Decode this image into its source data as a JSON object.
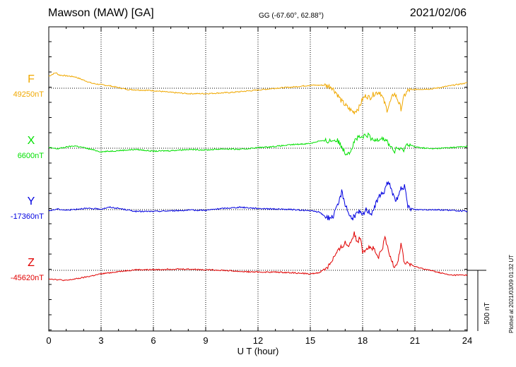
{
  "header": {
    "title": "Mawson (MAW)  [GA]",
    "coords": "GG (-67.60°,  62.88°)",
    "date": "2021/02/06"
  },
  "footer": {
    "plotted": "Plotted at 2021/03/09 01:32 UT"
  },
  "chart_data": {
    "type": "line",
    "xlabel": "U T (hour)",
    "xlim": [
      0,
      24
    ],
    "xticks": [
      0,
      3,
      6,
      9,
      12,
      15,
      18,
      21,
      24
    ],
    "grid": true,
    "scale_bar": {
      "label": "500 nT",
      "value_nT": 500
    },
    "series": [
      {
        "name": "F",
        "baseline_label": "49250nT",
        "baseline_nT": 49250,
        "color": "#f0a800",
        "points": [
          [
            0,
            100
          ],
          [
            0.4,
            130
          ],
          [
            0.6,
            110
          ],
          [
            1.5,
            95
          ],
          [
            2.5,
            40
          ],
          [
            3.5,
            20
          ],
          [
            4.5,
            -10
          ],
          [
            6,
            -20
          ],
          [
            7,
            -35
          ],
          [
            8,
            -45
          ],
          [
            9,
            -45
          ],
          [
            10.5,
            -35
          ],
          [
            12,
            -15
          ],
          [
            13,
            0
          ],
          [
            14,
            10
          ],
          [
            15,
            25
          ],
          [
            15.8,
            25
          ],
          [
            16.2,
            15
          ],
          [
            16.5,
            -40
          ],
          [
            16.8,
            -110
          ],
          [
            17.2,
            -170
          ],
          [
            17.5,
            -200
          ],
          [
            17.8,
            -160
          ],
          [
            18,
            -90
          ],
          [
            18.2,
            -60
          ],
          [
            18.4,
            -80
          ],
          [
            18.7,
            -40
          ],
          [
            19,
            -30
          ],
          [
            19.2,
            -100
          ],
          [
            19.4,
            -180
          ],
          [
            19.6,
            -110
          ],
          [
            19.8,
            -40
          ],
          [
            20,
            -90
          ],
          [
            20.2,
            -170
          ],
          [
            20.4,
            -60
          ],
          [
            20.6,
            -20
          ],
          [
            21,
            -10
          ],
          [
            22,
            -5
          ],
          [
            23,
            20
          ],
          [
            24,
            45
          ]
        ]
      },
      {
        "name": "X",
        "baseline_label": "6600nT",
        "baseline_nT": 6600,
        "color": "#00e000",
        "points": [
          [
            0,
            5
          ],
          [
            0.5,
            -5
          ],
          [
            1,
            10
          ],
          [
            1.5,
            20
          ],
          [
            2,
            5
          ],
          [
            3,
            -30
          ],
          [
            4,
            -20
          ],
          [
            5,
            -10
          ],
          [
            6,
            -25
          ],
          [
            7,
            -20
          ],
          [
            8,
            -10
          ],
          [
            9,
            -15
          ],
          [
            10,
            -5
          ],
          [
            11,
            -10
          ],
          [
            12,
            5
          ],
          [
            13,
            15
          ],
          [
            14,
            30
          ],
          [
            15,
            40
          ],
          [
            15.5,
            60
          ],
          [
            16,
            60
          ],
          [
            16.5,
            70
          ],
          [
            16.8,
            20
          ],
          [
            17,
            -40
          ],
          [
            17.3,
            -25
          ],
          [
            17.6,
            80
          ],
          [
            18,
            90
          ],
          [
            18.3,
            110
          ],
          [
            18.6,
            60
          ],
          [
            18.9,
            80
          ],
          [
            19.1,
            90
          ],
          [
            19.3,
            70
          ],
          [
            19.6,
            20
          ],
          [
            19.8,
            -30
          ],
          [
            20,
            0
          ],
          [
            20.3,
            -20
          ],
          [
            20.6,
            40
          ],
          [
            21,
            10
          ],
          [
            22,
            -5
          ],
          [
            23,
            5
          ],
          [
            24,
            15
          ]
        ]
      },
      {
        "name": "Y",
        "baseline_label": "-17360nT",
        "baseline_nT": -17360,
        "color": "#0000e0",
        "points": [
          [
            0,
            -10
          ],
          [
            0.5,
            5
          ],
          [
            1,
            -5
          ],
          [
            2,
            10
          ],
          [
            3,
            5
          ],
          [
            3.5,
            20
          ],
          [
            4,
            10
          ],
          [
            5,
            -15
          ],
          [
            6,
            -15
          ],
          [
            7,
            -10
          ],
          [
            8,
            -5
          ],
          [
            9,
            -5
          ],
          [
            10,
            10
          ],
          [
            11,
            20
          ],
          [
            12,
            10
          ],
          [
            13,
            5
          ],
          [
            14,
            0
          ],
          [
            15,
            -10
          ],
          [
            15.5,
            -20
          ],
          [
            16,
            -70
          ],
          [
            16.3,
            -60
          ],
          [
            16.6,
            40
          ],
          [
            16.8,
            150
          ],
          [
            17,
            50
          ],
          [
            17.2,
            -30
          ],
          [
            17.4,
            -80
          ],
          [
            17.6,
            -40
          ],
          [
            17.8,
            -20
          ],
          [
            18,
            -50
          ],
          [
            18.2,
            0
          ],
          [
            18.5,
            -30
          ],
          [
            18.8,
            60
          ],
          [
            19,
            120
          ],
          [
            19.2,
            140
          ],
          [
            19.4,
            220
          ],
          [
            19.6,
            200
          ],
          [
            19.8,
            100
          ],
          [
            20,
            80
          ],
          [
            20.2,
            180
          ],
          [
            20.4,
            190
          ],
          [
            20.6,
            20
          ],
          [
            21,
            0
          ],
          [
            22,
            0
          ],
          [
            23,
            -5
          ],
          [
            24,
            -15
          ]
        ]
      },
      {
        "name": "Z",
        "baseline_label": "-45620nT",
        "baseline_nT": -45620,
        "color": "#e00000",
        "points": [
          [
            0,
            -70
          ],
          [
            1,
            -85
          ],
          [
            2,
            -60
          ],
          [
            3,
            -30
          ],
          [
            4,
            -10
          ],
          [
            5,
            5
          ],
          [
            6,
            5
          ],
          [
            7,
            10
          ],
          [
            8,
            10
          ],
          [
            9,
            5
          ],
          [
            10,
            0
          ],
          [
            11,
            -10
          ],
          [
            12,
            -15
          ],
          [
            13,
            -15
          ],
          [
            14,
            -20
          ],
          [
            15,
            -30
          ],
          [
            15.5,
            -20
          ],
          [
            16,
            30
          ],
          [
            16.5,
            140
          ],
          [
            17,
            230
          ],
          [
            17.2,
            200
          ],
          [
            17.5,
            310
          ],
          [
            17.7,
            240
          ],
          [
            17.9,
            280
          ],
          [
            18,
            160
          ],
          [
            18.3,
            190
          ],
          [
            18.6,
            180
          ],
          [
            18.9,
            100
          ],
          [
            19.1,
            170
          ],
          [
            19.3,
            270
          ],
          [
            19.5,
            140
          ],
          [
            19.8,
            40
          ],
          [
            20,
            60
          ],
          [
            20.2,
            220
          ],
          [
            20.4,
            60
          ],
          [
            20.6,
            60
          ],
          [
            21,
            30
          ],
          [
            22,
            -5
          ],
          [
            23,
            -40
          ],
          [
            24,
            -40
          ]
        ]
      }
    ]
  }
}
